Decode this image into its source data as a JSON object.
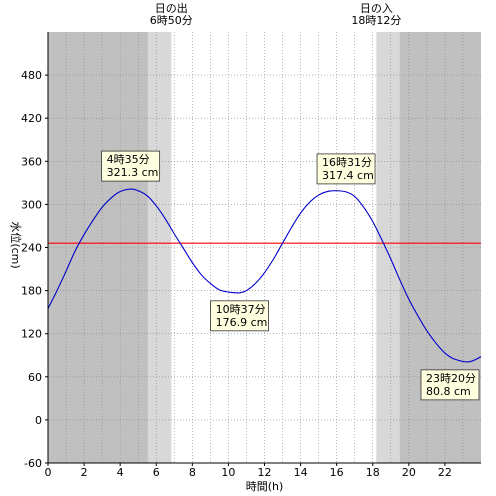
{
  "chart_data": {
    "type": "line",
    "xlabel": "時間(h)",
    "ylabel": "水位(cm)",
    "xlim": [
      0,
      24
    ],
    "ylim": [
      -60,
      540
    ],
    "xticks": [
      0,
      2,
      4,
      6,
      8,
      10,
      12,
      14,
      16,
      18,
      20,
      22
    ],
    "yticks": [
      -60,
      0,
      60,
      120,
      180,
      240,
      300,
      360,
      420,
      480
    ],
    "grid": true,
    "sunrise": {
      "title": "日の出",
      "time": "6時50分",
      "hour": 6.833
    },
    "sunset": {
      "title": "日の入",
      "time": "18時12分",
      "hour": 18.2
    },
    "reference_line": {
      "value": 246,
      "color": "#ff0000"
    },
    "series": [
      {
        "color": "#0000cc",
        "x": [
          0,
          0.5,
          1,
          1.5,
          2,
          2.5,
          3,
          3.5,
          4,
          4.58,
          5,
          5.5,
          6,
          6.5,
          7,
          7.5,
          8,
          8.5,
          9,
          9.5,
          10,
          10.62,
          11,
          11.5,
          12,
          12.5,
          13,
          13.5,
          14,
          14.5,
          15,
          15.5,
          16,
          16.52,
          17,
          17.5,
          18,
          18.5,
          19,
          19.5,
          20,
          20.5,
          21,
          21.5,
          22,
          22.5,
          23.33,
          24
        ],
        "y": [
          155,
          180,
          207,
          235,
          258,
          278,
          296,
          309,
          318,
          321.3,
          319,
          312,
          298,
          280,
          259,
          239,
          219,
          202,
          190,
          181,
          178,
          176.9,
          180,
          190,
          205,
          224,
          246,
          268,
          288,
          303,
          313,
          318,
          319,
          317.4,
          311,
          296,
          276,
          251,
          224,
          195,
          168,
          145,
          124,
          107,
          93,
          85,
          80.8,
          88
        ]
      }
    ],
    "annotations": [
      {
        "time": "4時35分",
        "value": "321.3 cm",
        "x": 4.58,
        "y": 321.3,
        "position": "above"
      },
      {
        "time": "10時37分",
        "value": "176.9 cm",
        "x": 10.62,
        "y": 176.9,
        "position": "below"
      },
      {
        "time": "16時31分",
        "value": "317.4 cm",
        "x": 16.52,
        "y": 317.4,
        "position": "above"
      },
      {
        "time": "23時20分",
        "value": "80.8 cm",
        "x": 23.33,
        "y": 80.8,
        "position": "below"
      }
    ]
  },
  "colors": {
    "night": "#c0c0c0",
    "twilight": "#d8d8d8",
    "day": "#ffffff",
    "grid": "#888888",
    "callout_bg": "#ffffe0"
  }
}
